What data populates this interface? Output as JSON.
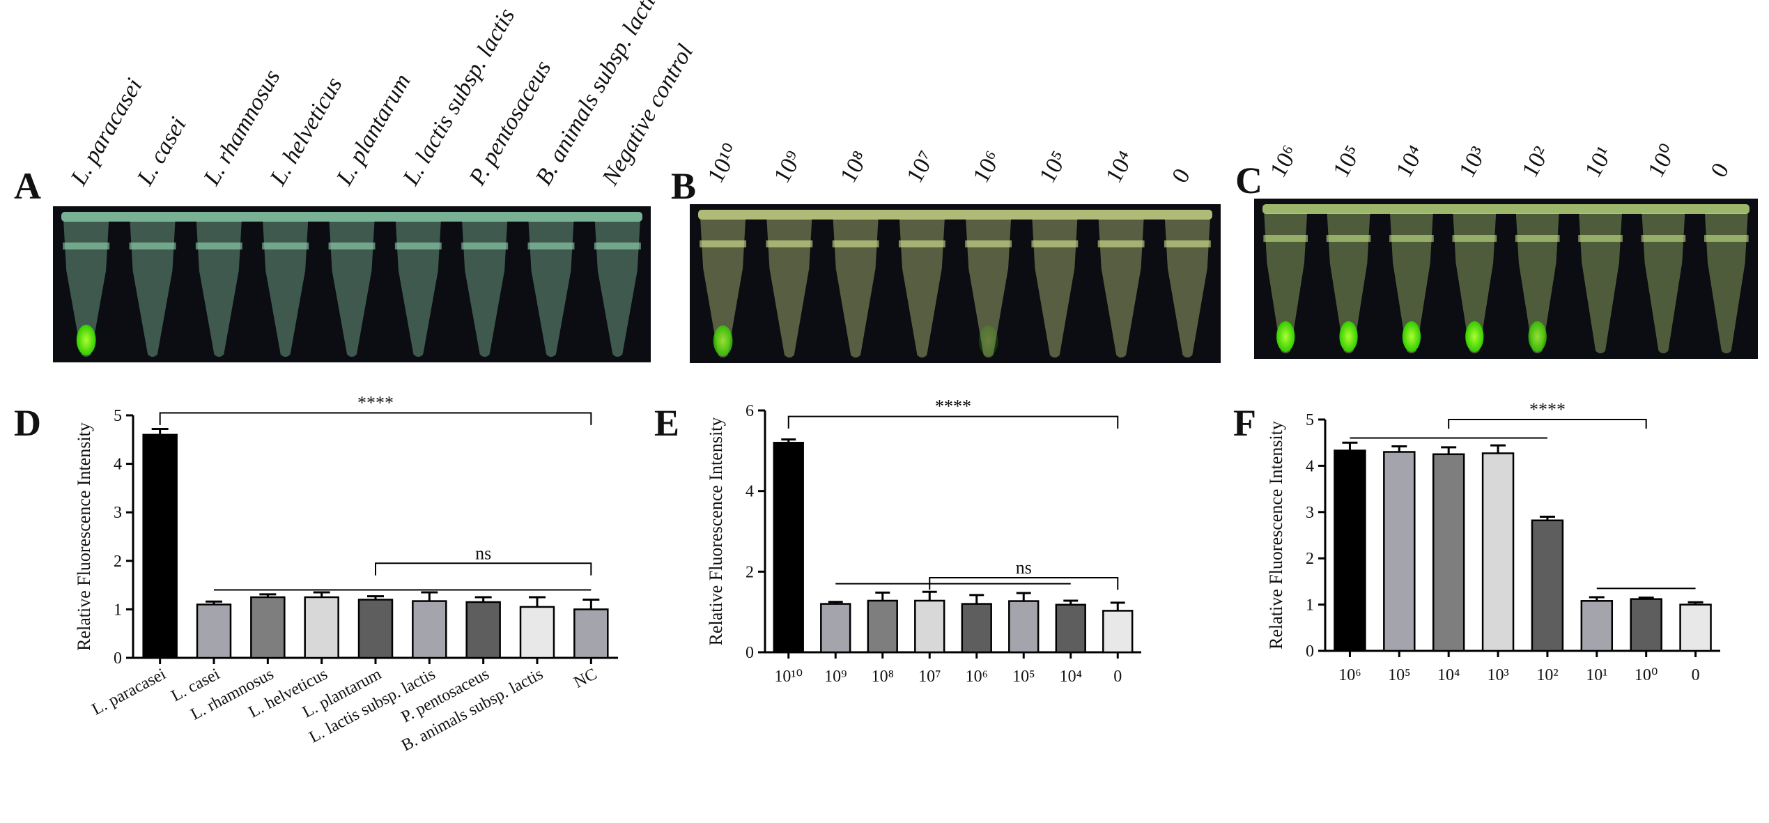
{
  "photos": [
    {
      "label": "A",
      "lanes": [
        "L. paracasei",
        "L. casei",
        "L. rhamnosus",
        "L. helveticus",
        "L. plantarum",
        "L. lactis subsp. lactis",
        "P. pentosaceus",
        "B. animals subsp. lactis",
        "Negative control"
      ]
    },
    {
      "label": "B",
      "lanes": [
        "10¹⁰",
        "10⁹",
        "10⁸",
        "10⁷",
        "10⁶",
        "10⁵",
        "10⁴",
        "0"
      ]
    },
    {
      "label": "C",
      "lanes": [
        "10⁶",
        "10⁵",
        "10⁴",
        "10³",
        "10²",
        "10¹",
        "10⁰",
        "0"
      ]
    }
  ],
  "chart_data": [
    {
      "type": "bar",
      "label": "D",
      "y_label": "Relative Fluorescence Intensity",
      "categories": [
        "L. paracasei",
        "L. casei",
        "L. rhamnosus",
        "L. helveticus",
        "L. plantarum",
        "L. lactis subsp. lactis",
        "P. pentosaceus",
        "B. animals subsp. lactis",
        "NC"
      ],
      "values": [
        4.6,
        1.1,
        1.25,
        1.25,
        1.2,
        1.17,
        1.15,
        1.05,
        1.0
      ],
      "errors": [
        0.12,
        0.06,
        0.06,
        0.1,
        0.07,
        0.18,
        0.1,
        0.2,
        0.2
      ],
      "colors": [
        "#000000",
        "#a4a4ac",
        "#7e7e7e",
        "#d8d8d8",
        "#5e5e5e",
        "#a4a4ac",
        "#5e5e5e",
        "#e8e8e8",
        "#a4a4ac"
      ],
      "ylim": [
        0,
        5
      ],
      "yticks": [
        0,
        1,
        2,
        3,
        4,
        5
      ],
      "annotations": [
        "****",
        "ns"
      ]
    },
    {
      "type": "bar",
      "label": "E",
      "y_label": "Relative Fluorescence Intensity",
      "categories": [
        "10¹⁰",
        "10⁹",
        "10⁸",
        "10⁷",
        "10⁶",
        "10⁵",
        "10⁴",
        "0"
      ],
      "values": [
        5.2,
        1.2,
        1.28,
        1.28,
        1.2,
        1.27,
        1.18,
        1.03
      ],
      "errors": [
        0.08,
        0.05,
        0.2,
        0.22,
        0.22,
        0.2,
        0.1,
        0.2
      ],
      "colors": [
        "#000000",
        "#a4a4ac",
        "#7e7e7e",
        "#d8d8d8",
        "#5e5e5e",
        "#a4a4ac",
        "#5e5e5e",
        "#e8e8e8"
      ],
      "ylim": [
        0,
        6
      ],
      "yticks": [
        0,
        2,
        4,
        6
      ],
      "annotations": [
        "****",
        "ns"
      ]
    },
    {
      "type": "bar",
      "label": "F",
      "y_label": "Relative Fluorescence Intensity",
      "categories": [
        "10⁶",
        "10⁵",
        "10⁴",
        "10³",
        "10²",
        "10¹",
        "10⁰",
        "0"
      ],
      "values": [
        4.33,
        4.3,
        4.25,
        4.27,
        2.82,
        1.08,
        1.12,
        1.0
      ],
      "errors": [
        0.17,
        0.12,
        0.15,
        0.17,
        0.08,
        0.08,
        0.03,
        0.05
      ],
      "colors": [
        "#000000",
        "#a4a4ac",
        "#7e7e7e",
        "#d8d8d8",
        "#5e5e5e",
        "#a4a4ac",
        "#5e5e5e",
        "#e8e8e8"
      ],
      "ylim": [
        0,
        5
      ],
      "yticks": [
        0,
        1,
        2,
        3,
        4,
        5
      ],
      "annotations": [
        "****"
      ]
    }
  ]
}
